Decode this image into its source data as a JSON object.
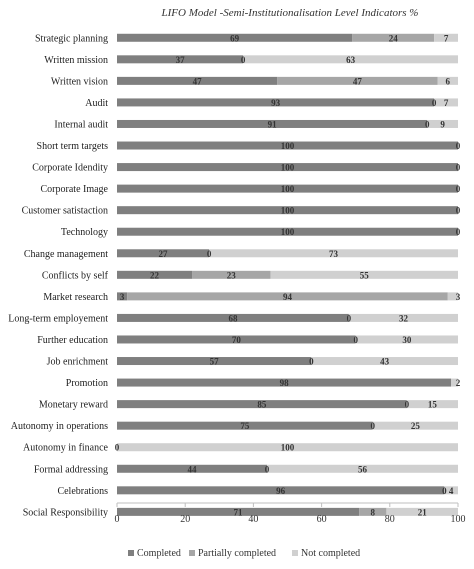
{
  "chart_data": {
    "type": "bar",
    "orientation": "horizontal",
    "stacked": true,
    "title": "LIFO Model -Semi-Institutionalisation Level Indicators %",
    "xlim": [
      0,
      100
    ],
    "xticks": [
      "0",
      "20",
      "40",
      "60",
      "80",
      "100"
    ],
    "legend_position": "bottom",
    "grid": false,
    "categories": [
      "Strategic planning",
      "Written mission",
      "Written vision",
      "Audit",
      "Internal audit",
      "Short term targets",
      "Corporate Idendity",
      "Corporate Image",
      "Customer satistaction",
      "Technology",
      "Change management",
      "Conflicts by self",
      "Market research",
      "Long-term employement",
      "Further education",
      "Job enrichment",
      "Promotion",
      "Monetary reward",
      "Autonomy in operations",
      "Autonomy in finance",
      "Formal addressing",
      "Celebrations",
      "Social Responsibility"
    ],
    "series": [
      {
        "name": "Completed",
        "color": "#7f7f7f",
        "values": [
          69,
          37,
          47,
          93,
          91,
          100,
          100,
          100,
          100,
          100,
          27,
          22,
          3,
          68,
          70,
          57,
          98,
          85,
          75,
          0,
          44,
          96,
          71
        ]
      },
      {
        "name": "Partially completed",
        "color": "#a6a6a6",
        "values": [
          24,
          0,
          47,
          0,
          0,
          0,
          0,
          0,
          0,
          0,
          0,
          23,
          94,
          0,
          0,
          0,
          0,
          0,
          0,
          0,
          0,
          0,
          8
        ]
      },
      {
        "name": "Not completed",
        "color": "#d0d0d0",
        "values": [
          7,
          63,
          6,
          7,
          9,
          0,
          0,
          0,
          0,
          0,
          73,
          55,
          3,
          32,
          30,
          43,
          2,
          15,
          25,
          100,
          56,
          4,
          21
        ]
      }
    ],
    "data_labels": [
      [
        "69",
        "24",
        "7"
      ],
      [
        "37",
        "",
        "63"
      ],
      [
        "47",
        "47",
        "6"
      ],
      [
        "93",
        "",
        "7"
      ],
      [
        "91",
        "",
        "9"
      ],
      [
        "100",
        "",
        "0"
      ],
      [
        "100",
        "",
        "0"
      ],
      [
        "100",
        "",
        "0"
      ],
      [
        "100",
        "",
        "0"
      ],
      [
        "100",
        "",
        "0"
      ],
      [
        "27",
        "",
        "73"
      ],
      [
        "22",
        "23",
        "55"
      ],
      [
        "3",
        "94",
        "3"
      ],
      [
        "68",
        "",
        "32"
      ],
      [
        "70",
        "",
        "30"
      ],
      [
        "57",
        "",
        "43"
      ],
      [
        "98",
        "",
        "2"
      ],
      [
        "85",
        "",
        "15"
      ],
      [
        "75",
        "",
        "25"
      ],
      [
        "0",
        "",
        "100"
      ],
      [
        "44",
        "",
        "56"
      ],
      [
        "96",
        "",
        "4"
      ],
      [
        "71",
        "8",
        "21"
      ]
    ],
    "zero_labels": [
      [],
      [
        "0"
      ],
      [],
      [
        "0"
      ],
      [
        "0"
      ],
      [],
      [],
      [],
      [],
      [],
      [
        "0"
      ],
      [],
      [],
      [
        "0"
      ],
      [
        "0"
      ],
      [
        "0"
      ],
      [],
      [
        "0"
      ],
      [
        "0"
      ],
      [],
      [
        "0"
      ],
      [
        "0"
      ],
      []
    ]
  }
}
